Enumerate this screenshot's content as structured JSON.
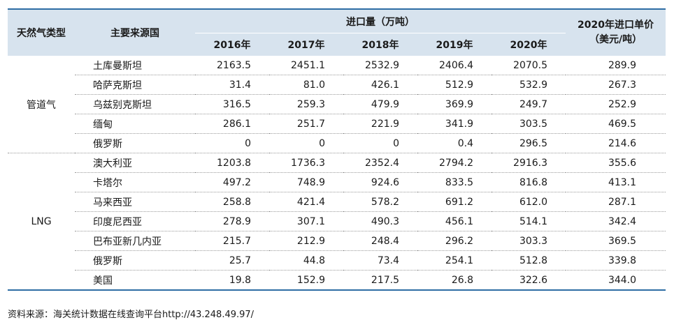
{
  "headers": {
    "type": "天然气类型",
    "country": "主要来源国",
    "volume": "进口量（万吨）",
    "years": [
      "2016年",
      "2017年",
      "2018年",
      "2019年",
      "2020年"
    ],
    "price_line1": "2020年进口单价",
    "price_line2": "（美元/吨）"
  },
  "groups": [
    {
      "label": "管道气",
      "rows": [
        {
          "country": "土库曼斯坦",
          "values": [
            "2163.5",
            "2451.1",
            "2532.9",
            "2406.4",
            "2070.5"
          ],
          "price": "289.9"
        },
        {
          "country": "哈萨克斯坦",
          "values": [
            "31.4",
            "81.0",
            "426.1",
            "512.9",
            "532.9"
          ],
          "price": "267.3"
        },
        {
          "country": "乌兹别克斯坦",
          "values": [
            "316.5",
            "259.3",
            "479.9",
            "369.9",
            "249.7"
          ],
          "price": "252.9"
        },
        {
          "country": "缅甸",
          "values": [
            "286.1",
            "251.7",
            "221.9",
            "341.9",
            "303.5"
          ],
          "price": "469.5"
        },
        {
          "country": "俄罗斯",
          "values": [
            "0",
            "0",
            "0",
            "0.4",
            "296.5"
          ],
          "price": "214.6"
        }
      ]
    },
    {
      "label": "LNG",
      "rows": [
        {
          "country": "澳大利亚",
          "values": [
            "1203.8",
            "1736.3",
            "2352.4",
            "2794.2",
            "2916.3"
          ],
          "price": "355.6"
        },
        {
          "country": "卡塔尔",
          "values": [
            "497.2",
            "748.9",
            "924.6",
            "833.5",
            "816.8"
          ],
          "price": "413.1"
        },
        {
          "country": "马来西亚",
          "values": [
            "258.8",
            "421.4",
            "578.2",
            "691.2",
            "612.0"
          ],
          "price": "287.1"
        },
        {
          "country": "印度尼西亚",
          "values": [
            "278.9",
            "307.1",
            "490.3",
            "456.1",
            "514.1"
          ],
          "price": "342.4"
        },
        {
          "country": "巴布亚新几内亚",
          "values": [
            "215.7",
            "212.9",
            "248.4",
            "296.2",
            "303.3"
          ],
          "price": "369.5"
        },
        {
          "country": "俄罗斯",
          "values": [
            "25.7",
            "44.8",
            "73.4",
            "254.1",
            "512.8"
          ],
          "price": "339.8"
        },
        {
          "country": "美国",
          "values": [
            "19.8",
            "152.9",
            "217.5",
            "26.8",
            "322.6"
          ],
          "price": "344.0"
        }
      ]
    }
  ],
  "source": "资料来源：海关统计数据在线查询平台http://43.248.49.97/",
  "colors": {
    "header_bg": "#d7e3ee",
    "rule": "#2e6da4"
  }
}
